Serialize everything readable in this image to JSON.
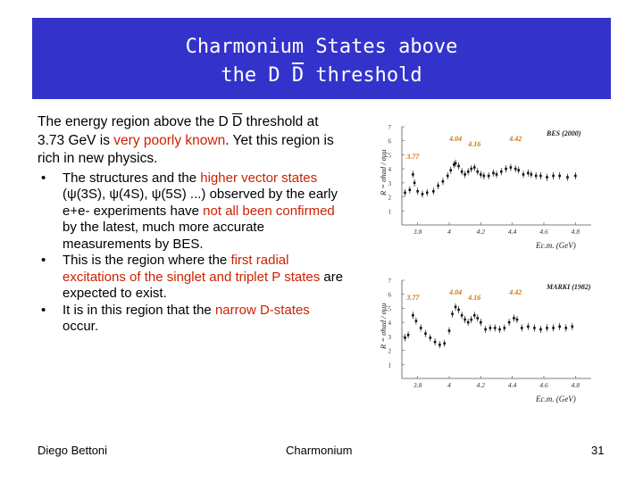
{
  "slide": {
    "title_line1": "Charmonium States above",
    "title_line2_pre": "the D ",
    "title_line2_bar": "D",
    "title_line2_post": " threshold",
    "intro_pre": "The energy region above the D ",
    "intro_bar": "D",
    "intro_mid": " threshold at 3.73 GeV is ",
    "intro_red1": "very poorly known",
    "intro_post": ". Yet this region is rich in new physics.",
    "bullet_symbol": "•",
    "b1_pre": "The structures and the ",
    "b1_red1": "higher vector states",
    "b1_mid": " (ψ(3S), ψ(4S), ψ(5S) ...) observed by the early e+e- experiments have ",
    "b1_red2": "not all been confirmed",
    "b1_post": " by the latest, much more accurate measurements by BES.",
    "b2_pre": "This is the region where the ",
    "b2_red": "first radial excitations of the singlet and triplet P states",
    "b2_post": " are expected to exist.",
    "b3_pre": "It is in this region that the ",
    "b3_red": "narrow D-states",
    "b3_post": " occur."
  },
  "footer": {
    "author": "Diego Bettoni",
    "center": "Charmonium",
    "page": "31"
  },
  "colors": {
    "title_bg": "#3333cc",
    "title_text": "#ffffff",
    "highlight": "#cc2200",
    "peak_label": "#cc7700"
  },
  "chart_data": [
    {
      "type": "scatter",
      "legend": "BES (2000)",
      "ylabel": "R = σhad / σμμ",
      "xlabel": "Ec.m. (GeV)",
      "xlim": [
        3.7,
        4.9
      ],
      "ylim": [
        0,
        7
      ],
      "x_ticks": [
        "3.8",
        "4",
        "4.2",
        "4.4",
        "4.6",
        "4.8"
      ],
      "y_ticks": [
        "1",
        "2",
        "3",
        "4",
        "5",
        "6",
        "7"
      ],
      "peaks": [
        {
          "x": 3.77,
          "label": "3.77"
        },
        {
          "x": 4.04,
          "label": "4.04"
        },
        {
          "x": 4.16,
          "label": "4.16"
        },
        {
          "x": 4.42,
          "label": "4.42"
        }
      ],
      "x": [
        3.72,
        3.75,
        3.77,
        3.78,
        3.8,
        3.83,
        3.86,
        3.9,
        3.93,
        3.96,
        3.99,
        4.01,
        4.03,
        4.04,
        4.06,
        4.08,
        4.1,
        4.12,
        4.14,
        4.16,
        4.18,
        4.2,
        4.22,
        4.25,
        4.28,
        4.3,
        4.33,
        4.36,
        4.39,
        4.42,
        4.44,
        4.47,
        4.5,
        4.52,
        4.55,
        4.58,
        4.62,
        4.66,
        4.7,
        4.75,
        4.8
      ],
      "y": [
        2.3,
        2.5,
        3.6,
        3.0,
        2.4,
        2.2,
        2.3,
        2.4,
        2.8,
        3.1,
        3.5,
        3.9,
        4.3,
        4.4,
        4.2,
        3.8,
        3.6,
        3.8,
        4.0,
        4.1,
        3.8,
        3.6,
        3.5,
        3.5,
        3.7,
        3.6,
        3.8,
        4.0,
        4.1,
        4.0,
        3.9,
        3.6,
        3.7,
        3.6,
        3.5,
        3.5,
        3.4,
        3.5,
        3.5,
        3.4,
        3.5
      ]
    },
    {
      "type": "scatter",
      "legend": "MARKI (1982)",
      "ylabel": "R = σhad / σμμ",
      "xlabel": "Ec.m. (GeV)",
      "xlim": [
        3.7,
        4.9
      ],
      "ylim": [
        0,
        7
      ],
      "x_ticks": [
        "3.8",
        "4",
        "4.2",
        "4.4",
        "4.6",
        "4.8"
      ],
      "y_ticks": [
        "1",
        "2",
        "3",
        "4",
        "5",
        "6",
        "7"
      ],
      "peaks": [
        {
          "x": 3.77,
          "label": "3.77"
        },
        {
          "x": 4.04,
          "label": "4.04"
        },
        {
          "x": 4.16,
          "label": "4.16"
        },
        {
          "x": 4.42,
          "label": "4.42"
        }
      ],
      "x": [
        3.72,
        3.74,
        3.77,
        3.79,
        3.82,
        3.85,
        3.88,
        3.91,
        3.94,
        3.97,
        4.0,
        4.02,
        4.04,
        4.06,
        4.08,
        4.1,
        4.12,
        4.14,
        4.16,
        4.18,
        4.2,
        4.23,
        4.26,
        4.29,
        4.32,
        4.35,
        4.38,
        4.41,
        4.43,
        4.46,
        4.5,
        4.54,
        4.58,
        4.62,
        4.66,
        4.7,
        4.74,
        4.78
      ],
      "y": [
        2.9,
        3.1,
        4.5,
        4.1,
        3.6,
        3.2,
        2.9,
        2.6,
        2.4,
        2.5,
        3.4,
        4.6,
        5.1,
        4.9,
        4.5,
        4.2,
        4.0,
        4.2,
        4.5,
        4.3,
        4.0,
        3.5,
        3.6,
        3.6,
        3.5,
        3.6,
        4.0,
        4.3,
        4.2,
        3.6,
        3.7,
        3.6,
        3.5,
        3.6,
        3.6,
        3.7,
        3.6,
        3.7
      ]
    }
  ]
}
